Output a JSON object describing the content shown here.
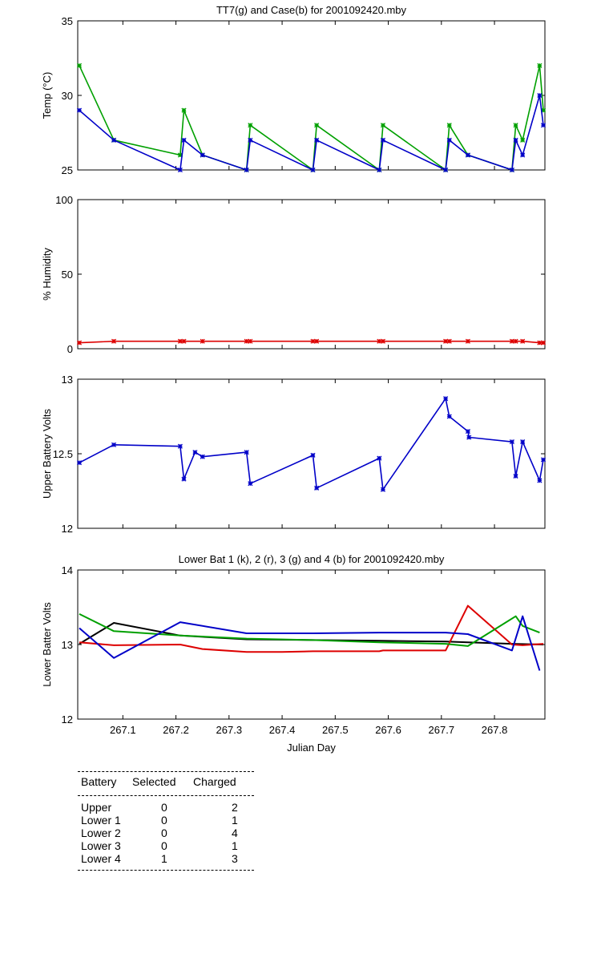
{
  "chart_data": [
    {
      "type": "line",
      "title": "TT7(g) and Case(b) for 2001092420.mby",
      "xlabel": "",
      "ylabel": "Temp  (°C)",
      "xlim": [
        267.015,
        267.895
      ],
      "ylim": [
        25,
        35
      ],
      "yticks": [
        "25",
        "30",
        "35"
      ],
      "xticks": [],
      "series": [
        {
          "name": "TT7",
          "color": "#00a000",
          "x": [
            267.018,
            267.083,
            267.208,
            267.215,
            267.25,
            267.333,
            267.34,
            267.458,
            267.465,
            267.583,
            267.59,
            267.708,
            267.715,
            267.75,
            267.833,
            267.84,
            267.853,
            267.885,
            267.892
          ],
          "y": [
            32,
            27,
            26,
            29,
            26,
            25,
            28,
            25,
            28,
            25,
            28,
            25,
            28,
            26,
            25,
            28,
            27,
            32,
            29
          ]
        },
        {
          "name": "Case",
          "color": "#0000c8",
          "x": [
            267.018,
            267.083,
            267.208,
            267.215,
            267.25,
            267.333,
            267.34,
            267.458,
            267.465,
            267.583,
            267.59,
            267.708,
            267.715,
            267.75,
            267.833,
            267.84,
            267.853,
            267.885,
            267.892
          ],
          "y": [
            29,
            27,
            25,
            27,
            26,
            25,
            27,
            25,
            27,
            25,
            27,
            25,
            27,
            26,
            25,
            27,
            26,
            30,
            28
          ]
        }
      ]
    },
    {
      "type": "line",
      "title": "",
      "xlabel": "",
      "ylabel": "% Humidity",
      "xlim": [
        267.015,
        267.895
      ],
      "ylim": [
        0,
        100
      ],
      "yticks": [
        "0",
        "50",
        "100"
      ],
      "xticks": [],
      "series": [
        {
          "name": "Humidity",
          "color": "#dd0000",
          "x": [
            267.018,
            267.083,
            267.208,
            267.215,
            267.25,
            267.333,
            267.34,
            267.458,
            267.465,
            267.583,
            267.59,
            267.708,
            267.715,
            267.75,
            267.833,
            267.84,
            267.853,
            267.885,
            267.892
          ],
          "y": [
            4,
            5,
            5,
            5,
            5,
            5,
            5,
            5,
            5,
            5,
            5,
            5,
            5,
            5,
            5,
            5,
            5,
            4,
            4
          ]
        }
      ]
    },
    {
      "type": "line",
      "title": "",
      "xlabel": "",
      "ylabel": "Upper Battery Volts",
      "xlim": [
        267.015,
        267.895
      ],
      "ylim": [
        12,
        13
      ],
      "yticks": [
        "12",
        "12.5",
        "13"
      ],
      "xticks": [],
      "series": [
        {
          "name": "Upper",
          "color": "#0000c8",
          "x": [
            267.018,
            267.083,
            267.208,
            267.215,
            267.236,
            267.25,
            267.333,
            267.34,
            267.458,
            267.465,
            267.583,
            267.59,
            267.708,
            267.715,
            267.75,
            267.752,
            267.833,
            267.84,
            267.853,
            267.885,
            267.892
          ],
          "y": [
            12.44,
            12.56,
            12.55,
            12.33,
            12.51,
            12.48,
            12.51,
            12.3,
            12.49,
            12.27,
            12.47,
            12.26,
            12.87,
            12.75,
            12.65,
            12.61,
            12.58,
            12.35,
            12.58,
            12.32,
            12.46
          ]
        }
      ]
    },
    {
      "type": "line",
      "title": "Lower Bat 1 (k), 2 (r), 3 (g) and 4 (b) for 2001092420.mby",
      "xlabel": "Julian Day",
      "ylabel": "Lower Batter Volts",
      "xlim": [
        267.015,
        267.895
      ],
      "ylim": [
        12,
        14
      ],
      "yticks": [
        "12",
        "13",
        "14"
      ],
      "xticks": [
        "267.1",
        "267.2",
        "267.3",
        "267.4",
        "267.5",
        "267.6",
        "267.7",
        "267.8"
      ],
      "xtick_values": [
        267.1,
        267.2,
        267.3,
        267.4,
        267.5,
        267.6,
        267.7,
        267.8
      ],
      "series": [
        {
          "name": "Lower 1",
          "color": "#000000",
          "x": [
            267.018,
            267.083,
            267.208,
            267.333,
            267.458,
            267.583,
            267.708,
            267.75,
            267.833,
            267.892
          ],
          "y": [
            13.01,
            13.29,
            13.12,
            13.07,
            13.06,
            13.05,
            13.04,
            13.03,
            13.01,
            13.0
          ]
        },
        {
          "name": "Lower 2",
          "color": "#dd0000",
          "x": [
            267.018,
            267.083,
            267.208,
            267.25,
            267.333,
            267.4,
            267.458,
            267.583,
            267.59,
            267.708,
            267.75,
            267.833,
            267.853,
            267.892
          ],
          "y": [
            13.03,
            12.99,
            13.0,
            12.94,
            12.9,
            12.9,
            12.91,
            12.91,
            12.92,
            12.92,
            13.52,
            13.0,
            12.99,
            13.01
          ]
        },
        {
          "name": "Lower 3",
          "color": "#00a000",
          "x": [
            267.018,
            267.083,
            267.208,
            267.333,
            267.458,
            267.583,
            267.708,
            267.75,
            267.84,
            267.853,
            267.885
          ],
          "y": [
            13.41,
            13.18,
            13.12,
            13.08,
            13.06,
            13.03,
            13.01,
            12.98,
            13.38,
            13.25,
            13.16
          ]
        },
        {
          "name": "Lower 4",
          "color": "#0000c8",
          "x": [
            267.018,
            267.083,
            267.208,
            267.333,
            267.458,
            267.583,
            267.708,
            267.75,
            267.833,
            267.853,
            267.885
          ],
          "y": [
            13.22,
            12.82,
            13.3,
            13.15,
            13.15,
            13.16,
            13.16,
            13.14,
            12.92,
            13.38,
            12.65
          ]
        }
      ]
    }
  ],
  "summary_table": {
    "headers": [
      "Battery",
      "Selected",
      "Charged"
    ],
    "rows": [
      {
        "battery": "Upper",
        "selected": "0",
        "charged": "2"
      },
      {
        "battery": "Lower 1",
        "selected": "0",
        "charged": "1"
      },
      {
        "battery": "Lower 2",
        "selected": "0",
        "charged": "4"
      },
      {
        "battery": "Lower 3",
        "selected": "0",
        "charged": "1"
      },
      {
        "battery": "Lower 4",
        "selected": "1",
        "charged": "3"
      }
    ]
  }
}
